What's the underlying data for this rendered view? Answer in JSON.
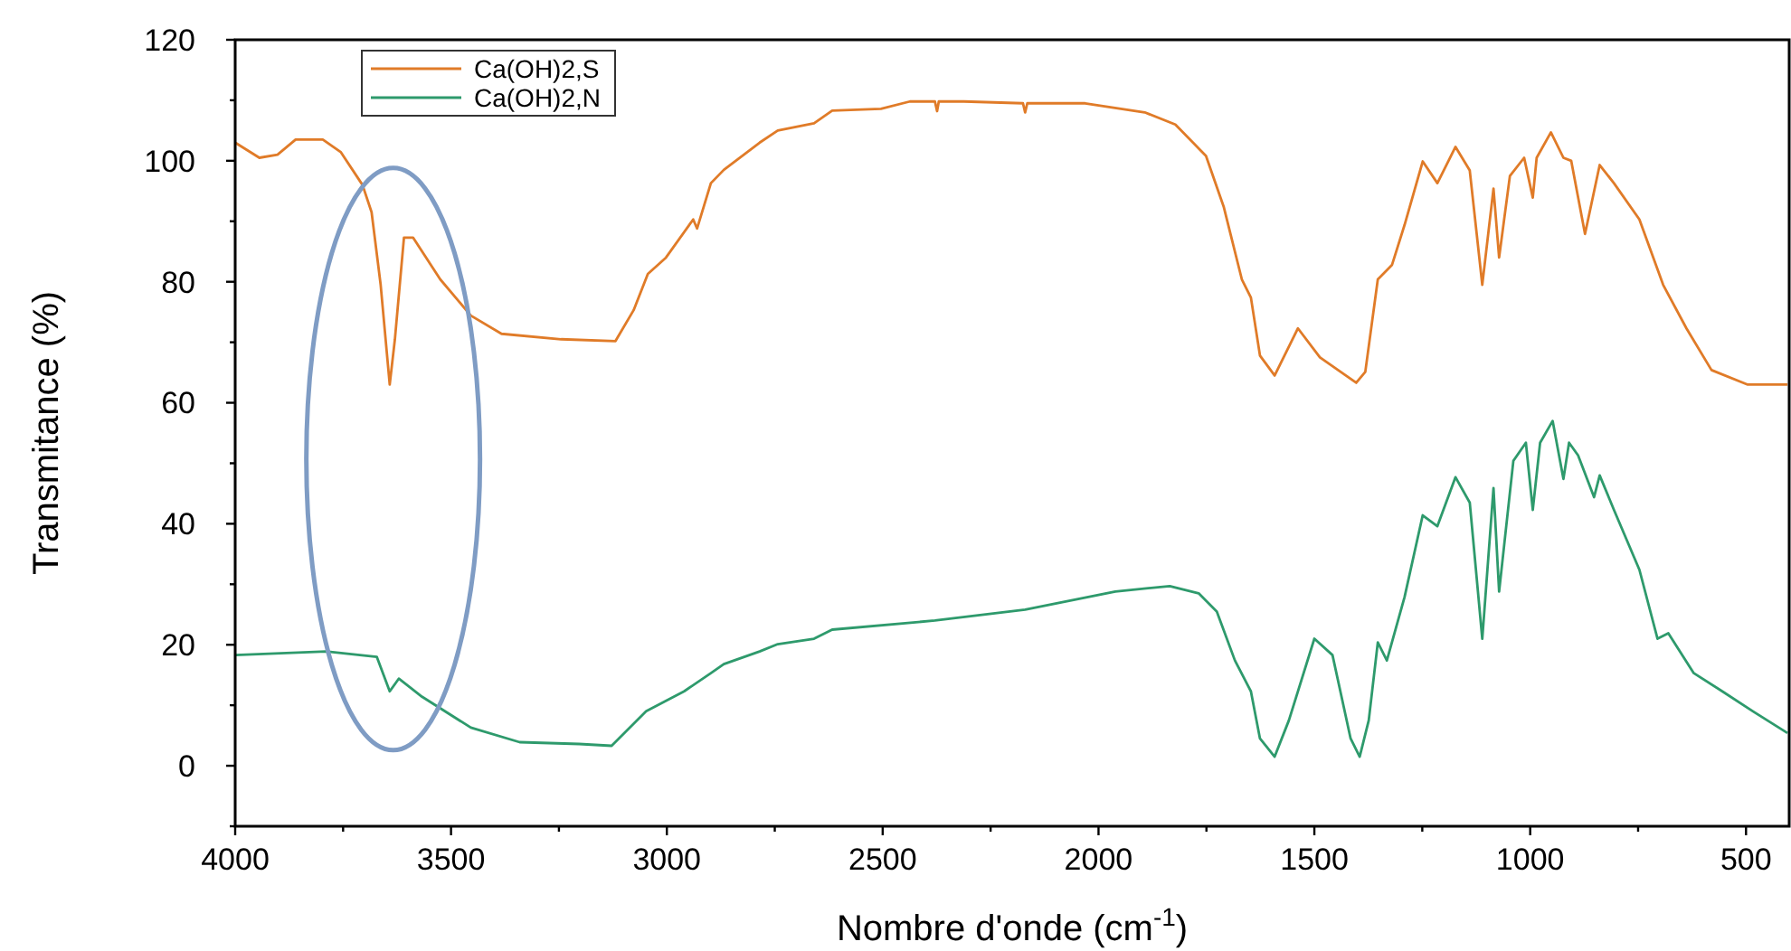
{
  "chart_data": {
    "type": "line",
    "xlabel": "Nombre d'onde (cm$^{-1}$)",
    "ylabel": "Transmitance (%)",
    "xlim": [
      4000,
      400
    ],
    "ylim": [
      -10,
      120
    ],
    "xticks": [
      4000,
      {
        "value": 3750,
        "label": null
      },
      3500,
      {
        "value": 3250,
        "label": null
      },
      3000,
      {
        "value": 2750,
        "label": null
      },
      2500,
      {
        "value": 2250,
        "label": null
      },
      2000,
      {
        "value": 1750,
        "label": null
      },
      1500,
      {
        "value": 1250,
        "label": null
      },
      1000,
      {
        "value": 750,
        "label": null
      },
      500
    ],
    "yticks": [
      {
        "value": -10,
        "label": null
      },
      0,
      {
        "value": 10,
        "label": null
      },
      20,
      {
        "value": 30,
        "label": null
      },
      40,
      {
        "value": 50,
        "label": null
      },
      60,
      {
        "value": 70,
        "label": null
      },
      80,
      {
        "value": 90,
        "label": null
      },
      100,
      {
        "value": 110,
        "label": null
      },
      120
    ],
    "grid": false,
    "legend": "top left",
    "marker": "none",
    "line_style": "solid",
    "series": [
      {
        "name": "Ca(OH)2,S",
        "color": "#e07b28",
        "x": [
          4000,
          3944,
          3902,
          3860,
          3797,
          3755,
          3705,
          3684,
          3663,
          3642,
          3630,
          3609,
          3588,
          3525,
          3454,
          3383,
          3245,
          3119,
          3077,
          3044,
          3002,
          2939,
          2930,
          2898,
          2868,
          2785,
          2743,
          2659,
          2617,
          2504,
          2437,
          2379,
          2374,
          2370,
          2312,
          2175,
          2170,
          2165,
          2031,
          1893,
          1822,
          1751,
          1710,
          1668,
          1647,
          1626,
          1592,
          1538,
          1487,
          1403,
          1382,
          1353,
          1320,
          1291,
          1249,
          1215,
          1173,
          1140,
          1111,
          1085,
          1072,
          1047,
          1014,
          994,
          985,
          952,
          923,
          905,
          873,
          839,
          806,
          747,
          692,
          638,
          580,
          496,
          404
        ],
        "values": [
          103,
          100.5,
          101,
          103.5,
          103.5,
          101.4,
          96,
          91.5,
          79.5,
          63,
          70.5,
          87.3,
          87.3,
          80.4,
          74.4,
          71.4,
          70.5,
          70.2,
          75.3,
          81.3,
          84,
          90.3,
          88.8,
          96.3,
          98.5,
          103,
          105,
          106.2,
          108.3,
          108.6,
          109.8,
          109.8,
          108.2,
          109.8,
          109.8,
          109.5,
          108,
          109.5,
          109.5,
          108,
          106,
          100.8,
          92.4,
          80.4,
          77.4,
          67.8,
          64.5,
          72.3,
          67.5,
          63.3,
          65.1,
          80.4,
          82.8,
          89.4,
          99.9,
          96.3,
          102.3,
          98.4,
          79.5,
          95.4,
          84,
          97.5,
          100.5,
          93.9,
          100.5,
          104.7,
          100.5,
          100,
          87.9,
          99.3,
          96.3,
          90.3,
          79.5,
          72.3,
          65.4,
          63,
          63
        ]
      },
      {
        "name": "Ca(OH)2,N",
        "color": "#2e9a6c",
        "x": [
          4000,
          3789,
          3672,
          3642,
          3621,
          3567,
          3454,
          3341,
          3203,
          3128,
          3048,
          2960,
          2898,
          2868,
          2785,
          2743,
          2659,
          2617,
          2379,
          2170,
          1961,
          1835,
          1768,
          1726,
          1684,
          1647,
          1626,
          1592,
          1559,
          1500,
          1458,
          1416,
          1395,
          1374,
          1353,
          1332,
          1291,
          1249,
          1215,
          1173,
          1140,
          1111,
          1085,
          1072,
          1039,
          1010,
          994,
          977,
          948,
          923,
          910,
          889,
          852,
          839,
          806,
          747,
          705,
          680,
          621,
          555,
          484,
          404
        ],
        "values": [
          18.3,
          18.9,
          18,
          12.3,
          14.4,
          11.4,
          6.3,
          3.9,
          3.6,
          3.3,
          9,
          12.3,
          15.3,
          16.8,
          18.9,
          20.1,
          21,
          22.5,
          24,
          25.8,
          28.8,
          29.7,
          28.5,
          25.5,
          17.4,
          12.3,
          4.5,
          1.5,
          7.5,
          21,
          18.3,
          4.5,
          1.5,
          7.5,
          20.4,
          17.4,
          27.9,
          41.4,
          39.6,
          47.7,
          43.5,
          21,
          45.9,
          28.8,
          50.4,
          53.4,
          42.3,
          53.4,
          57,
          47.4,
          53.4,
          51.3,
          44.4,
          48,
          42.3,
          32.4,
          21,
          21.9,
          15.3,
          12.3,
          9,
          5.4
        ]
      }
    ]
  }
}
